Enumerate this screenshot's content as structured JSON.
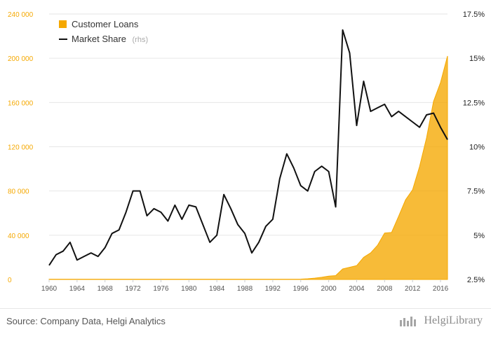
{
  "chart_data": {
    "type": "area",
    "xlim": [
      1960,
      2017
    ],
    "ylim_left": [
      0,
      240000
    ],
    "ylim_right": [
      2.5,
      17.5
    ],
    "x_ticks": [
      1960,
      1964,
      1968,
      1972,
      1976,
      1980,
      1984,
      1988,
      1992,
      1996,
      2000,
      2004,
      2008,
      2012,
      2016
    ],
    "y_ticks_left": [
      0,
      40000,
      80000,
      120000,
      160000,
      200000,
      240000
    ],
    "y_tick_labels_left": [
      "0",
      "40 000",
      "80 000",
      "120 000",
      "160 000",
      "200 000",
      "240 000"
    ],
    "y_ticks_right": [
      2.5,
      5,
      7.5,
      10,
      12.5,
      15,
      17.5
    ],
    "y_tick_labels_right": [
      "2.5%",
      "5%",
      "7.5%",
      "10%",
      "12.5%",
      "15%",
      "17.5%"
    ],
    "grid": true,
    "legend_position": "top-left",
    "series": [
      {
        "name": "Customer Loans",
        "type": "area",
        "axis": "left",
        "color": "#f5a800",
        "x": [
          1960,
          1961,
          1962,
          1963,
          1964,
          1965,
          1966,
          1967,
          1968,
          1969,
          1970,
          1971,
          1972,
          1973,
          1974,
          1975,
          1976,
          1977,
          1978,
          1979,
          1980,
          1981,
          1982,
          1983,
          1984,
          1985,
          1986,
          1987,
          1988,
          1989,
          1990,
          1991,
          1992,
          1993,
          1994,
          1995,
          1996,
          1997,
          1998,
          1999,
          2000,
          2001,
          2002,
          2003,
          2004,
          2005,
          2006,
          2007,
          2008,
          2009,
          2010,
          2011,
          2012,
          2013,
          2014,
          2015,
          2016,
          2017
        ],
        "values": [
          200,
          200,
          200,
          200,
          200,
          200,
          200,
          200,
          200,
          200,
          200,
          200,
          200,
          200,
          200,
          200,
          200,
          200,
          200,
          200,
          200,
          200,
          200,
          200,
          200,
          200,
          200,
          200,
          200,
          200,
          200,
          200,
          200,
          200,
          200,
          200,
          300,
          600,
          1200,
          2000,
          3000,
          3500,
          9500,
          11000,
          12500,
          20000,
          24000,
          31000,
          42000,
          42500,
          57000,
          72000,
          81000,
          102000,
          128000,
          161000,
          178000,
          202000
        ]
      },
      {
        "name": "Market Share",
        "legend_suffix": "(rhs)",
        "type": "line",
        "axis": "right",
        "color": "#111111",
        "x": [
          1960,
          1961,
          1962,
          1963,
          1964,
          1965,
          1966,
          1967,
          1968,
          1969,
          1970,
          1971,
          1972,
          1973,
          1974,
          1975,
          1976,
          1977,
          1978,
          1979,
          1980,
          1981,
          1982,
          1983,
          1984,
          1985,
          1986,
          1987,
          1988,
          1989,
          1990,
          1991,
          1992,
          1993,
          1994,
          1995,
          1996,
          1997,
          1998,
          1999,
          2000,
          2001,
          2002,
          2003,
          2004,
          2005,
          2006,
          2007,
          2008,
          2009,
          2010,
          2011,
          2012,
          2013,
          2014,
          2015,
          2016,
          2017
        ],
        "values": [
          3.3,
          3.9,
          4.1,
          4.6,
          3.6,
          3.8,
          4.0,
          3.8,
          4.3,
          5.1,
          5.3,
          6.3,
          7.5,
          7.5,
          6.1,
          6.5,
          6.3,
          5.8,
          6.7,
          5.9,
          6.7,
          6.6,
          5.6,
          4.6,
          5.0,
          7.3,
          6.5,
          5.6,
          5.1,
          4.0,
          4.6,
          5.5,
          5.9,
          8.2,
          9.6,
          8.8,
          7.8,
          7.5,
          8.6,
          8.9,
          8.6,
          6.6,
          16.6,
          15.3,
          11.2,
          13.7,
          12.0,
          12.2,
          12.4,
          11.7,
          12.0,
          11.7,
          11.4,
          11.1,
          11.8,
          11.9,
          11.1,
          10.4
        ]
      }
    ]
  },
  "footer": {
    "source": "Source: Company Data, Helgi Analytics",
    "logo_text": "HelgiLibrary"
  }
}
